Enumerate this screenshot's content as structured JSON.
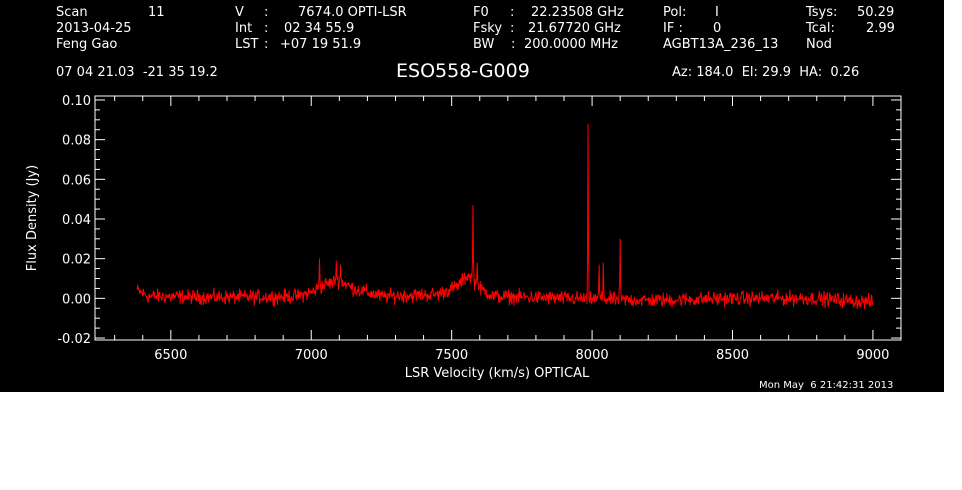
{
  "header": {
    "col1": [
      {
        "label": "Scan",
        "value": "11"
      },
      {
        "label": "2013-04-25",
        "value": ""
      },
      {
        "label": "Feng Gao",
        "value": ""
      }
    ],
    "col2": [
      {
        "label": "V",
        "sep": ":",
        "value": "7674.0 OPTI-LSR"
      },
      {
        "label": "Int",
        "sep": ":",
        "value": "02 34 55.9"
      },
      {
        "label": "LST",
        "sep": ":",
        "value": "+07 19 51.9"
      }
    ],
    "col3": [
      {
        "label": "F0",
        "sep": ":",
        "value": "22.23508 GHz"
      },
      {
        "label": "Fsky",
        "sep": ":",
        "value": "21.67720 GHz"
      },
      {
        "label": "BW",
        "sep": ":",
        "value": "200.0000 MHz"
      }
    ],
    "col4": [
      {
        "label": "Pol:",
        "value": "I"
      },
      {
        "label": "IF :",
        "value": "0"
      },
      {
        "label": "AGBT13A_236_13",
        "value": ""
      }
    ],
    "col5": [
      {
        "label": "Tsys:",
        "value": "50.29"
      },
      {
        "label": "Tcal:",
        "value": "2.99"
      },
      {
        "label": "Nod",
        "value": ""
      }
    ],
    "coords": "07 04 21.03  -21 35 19.2",
    "source": "ESO558-G009",
    "pointing": "Az: 184.0  El: 29.9  HA:  0.26"
  },
  "footer": {
    "timestamp": "Mon May  6 21:42:31 2013"
  },
  "colors": {
    "background": "#000000",
    "axes": "#ffffff",
    "spectrum": "#ff0000"
  },
  "chart_data": {
    "type": "line",
    "title": "ESO558-G009",
    "xlabel": "LSR Velocity (km/s) OPTICAL",
    "ylabel": "Flux Density (Jy)",
    "xlim": [
      6230,
      9100
    ],
    "ylim": [
      -0.021,
      0.102
    ],
    "xticks": [
      6500,
      7000,
      7500,
      8000,
      8500,
      9000
    ],
    "xtick_labels": [
      "6500",
      "7000",
      "7500",
      "8000",
      "8500",
      "9000"
    ],
    "yticks": [
      -0.02,
      0.0,
      0.02,
      0.04,
      0.06,
      0.08,
      0.1
    ],
    "ytick_labels": [
      "-0.02",
      "0.00",
      "0.02",
      "0.04",
      "0.06",
      "0.08",
      "0.10"
    ],
    "grid": false,
    "series": [
      {
        "color": "#ff0000",
        "x_range": [
          6380,
          9000
        ],
        "noise_rms": 0.0018,
        "baseline": [
          [
            6380,
            0.004
          ],
          [
            6420,
            0.001
          ],
          [
            6700,
            0.0005
          ],
          [
            6950,
            0.001
          ],
          [
            7000,
            0.003
          ],
          [
            7050,
            0.007
          ],
          [
            7100,
            0.009
          ],
          [
            7150,
            0.005
          ],
          [
            7250,
            0.001
          ],
          [
            7450,
            0.002
          ],
          [
            7520,
            0.006
          ],
          [
            7560,
            0.012
          ],
          [
            7600,
            0.005
          ],
          [
            7650,
            0.001
          ],
          [
            7900,
            0.0
          ],
          [
            8200,
            -0.001
          ],
          [
            8500,
            0.0
          ],
          [
            8800,
            0.0
          ],
          [
            9000,
            -0.002
          ]
        ],
        "features": [
          {
            "x": 7030,
            "peak": 0.02
          },
          {
            "x": 7090,
            "peak": 0.019
          },
          {
            "x": 7105,
            "peak": 0.017
          },
          {
            "x": 7575,
            "peak": 0.047
          },
          {
            "x": 7590,
            "peak": 0.018
          },
          {
            "x": 7985,
            "peak": 0.088
          },
          {
            "x": 8025,
            "peak": 0.017
          },
          {
            "x": 8040,
            "peak": 0.018
          },
          {
            "x": 8100,
            "peak": 0.03
          }
        ]
      }
    ]
  }
}
